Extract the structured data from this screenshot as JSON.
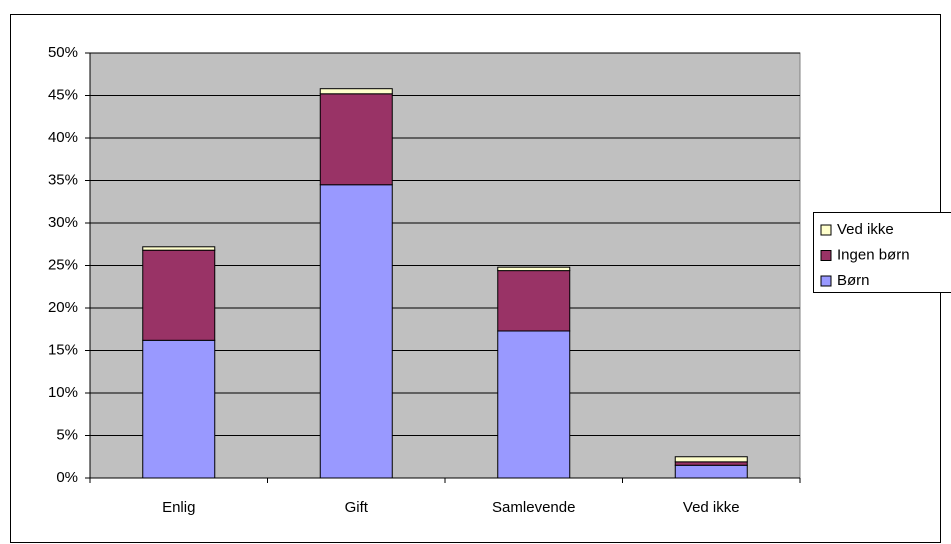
{
  "chart_data": {
    "type": "stacked-bar",
    "categories": [
      "Enlig",
      "Gift",
      "Samlevende",
      "Ved ikke"
    ],
    "series": [
      {
        "name": "Børn",
        "color": "#9999ff",
        "values": [
          16.2,
          34.5,
          17.3,
          1.5
        ]
      },
      {
        "name": "Ingen børn",
        "color": "#993366",
        "values": [
          10.6,
          10.7,
          7.1,
          0.4
        ]
      },
      {
        "name": "Ved ikke",
        "color": "#ffffcc",
        "values": [
          0.4,
          0.6,
          0.4,
          0.6
        ]
      }
    ],
    "ylim": [
      0,
      50
    ],
    "yticks": [
      {
        "value": 0,
        "label": "0%"
      },
      {
        "value": 5,
        "label": "5%"
      },
      {
        "value": 10,
        "label": "10%"
      },
      {
        "value": 15,
        "label": "15%"
      },
      {
        "value": 20,
        "label": "20%"
      },
      {
        "value": 25,
        "label": "25%"
      },
      {
        "value": 30,
        "label": "30%"
      },
      {
        "value": 35,
        "label": "35%"
      },
      {
        "value": 40,
        "label": "40%"
      },
      {
        "value": 45,
        "label": "45%"
      },
      {
        "value": 50,
        "label": "50%"
      }
    ],
    "grid": true,
    "plot_background": "#c0c0c0",
    "legend": "right"
  }
}
